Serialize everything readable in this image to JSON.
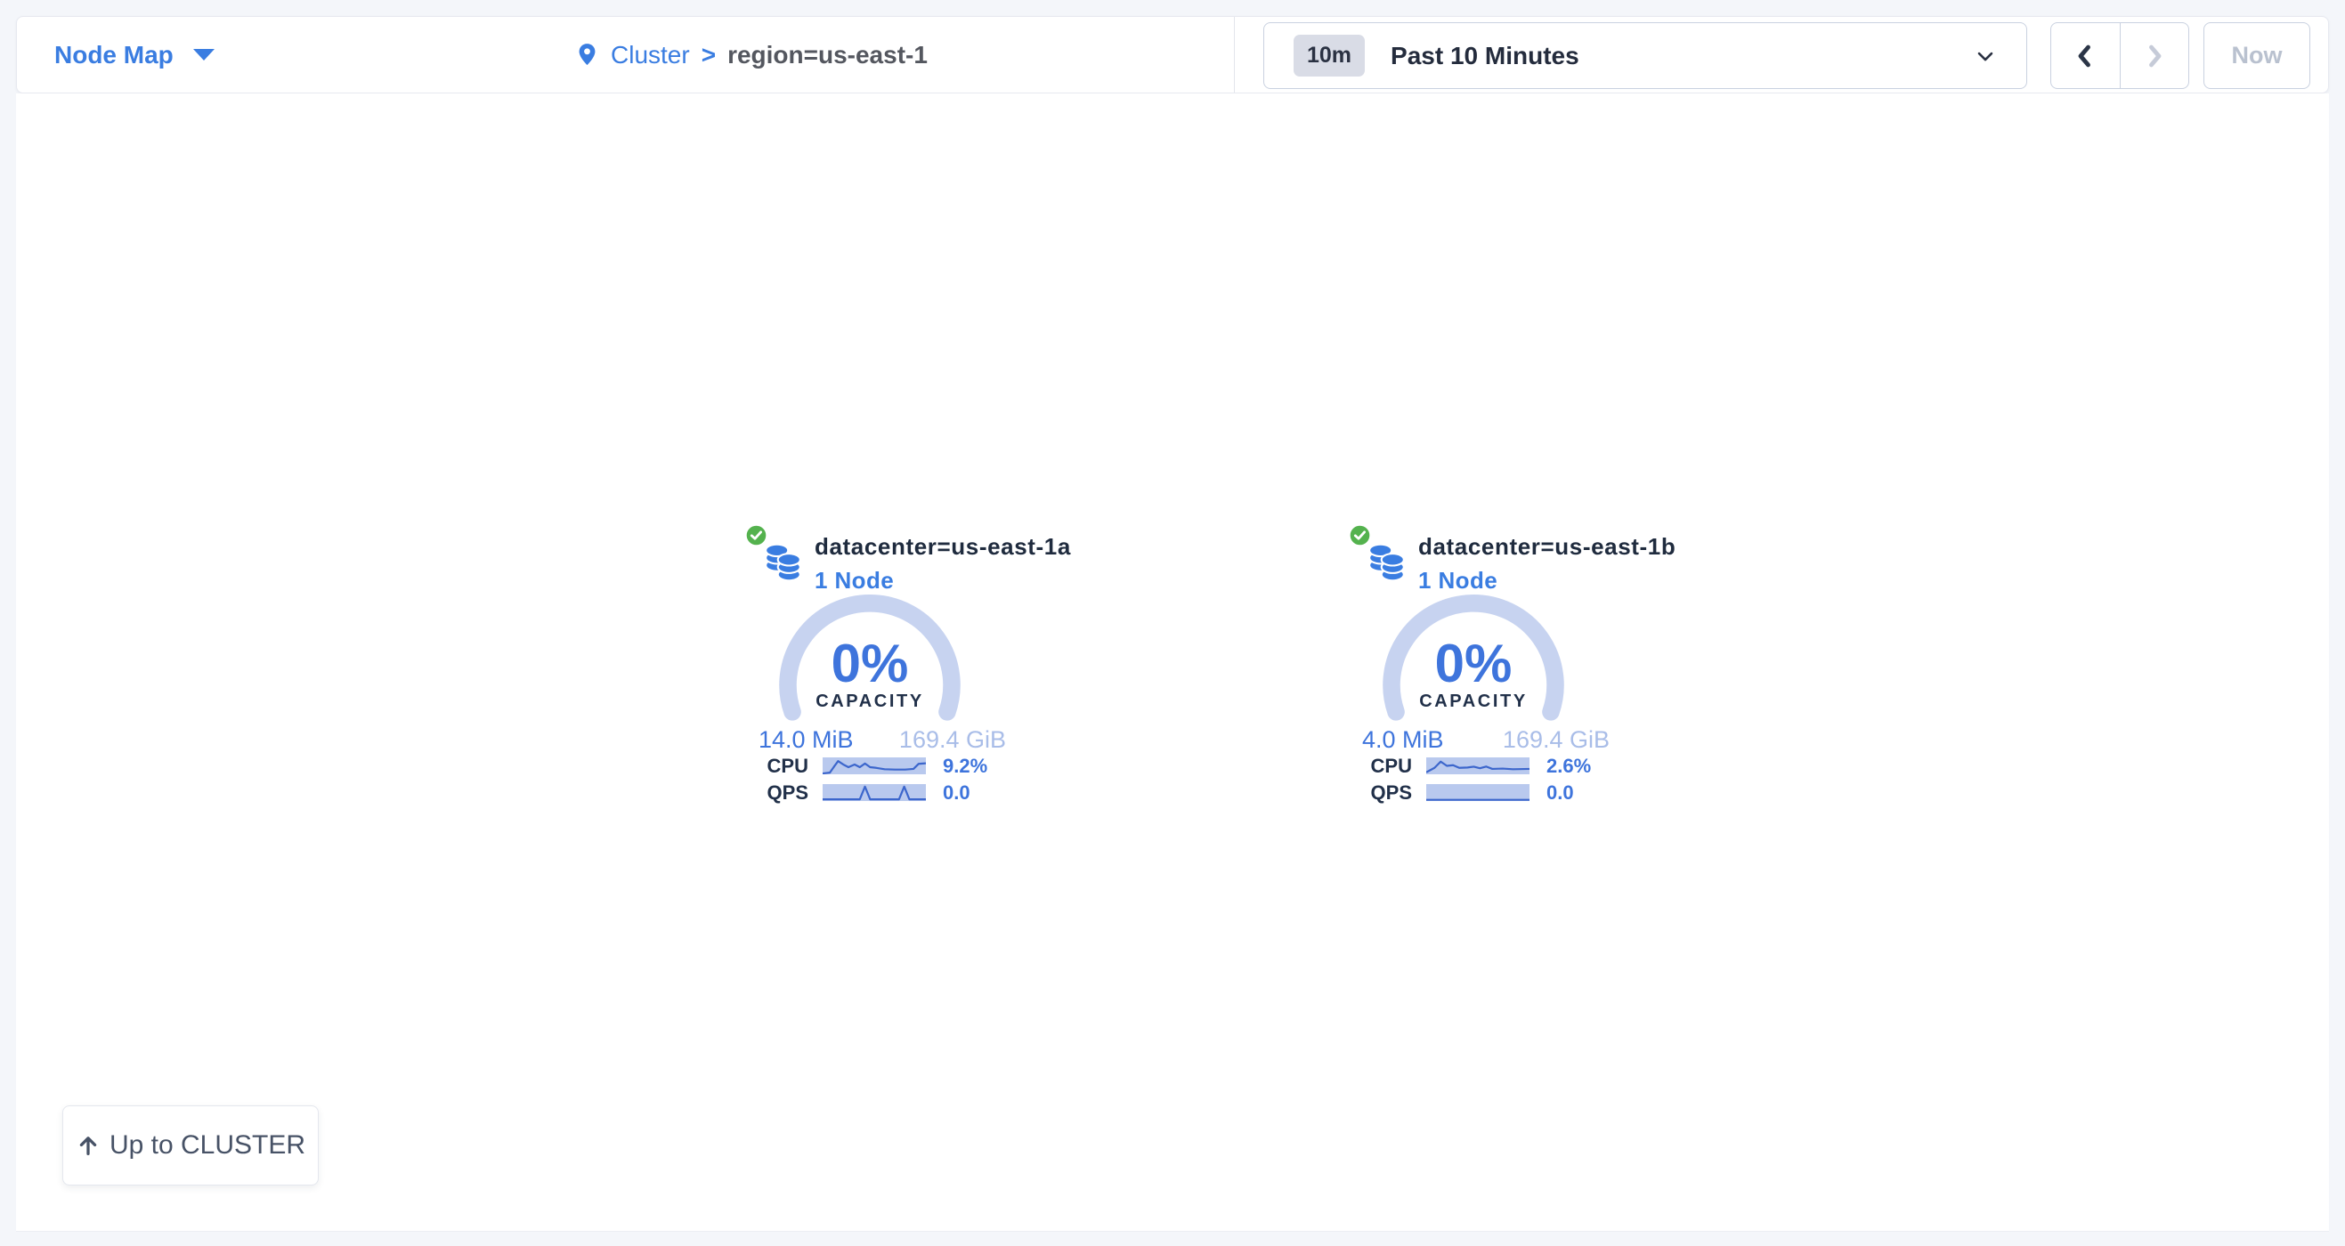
{
  "colors": {
    "accent_blue": "#3a7de1",
    "value_blue": "#3e74dc",
    "gauge_track": "#c7d3f0",
    "total_light_blue": "#a9bde8",
    "spark_band": "#b9c9ee",
    "spark_line": "#3c66cc",
    "status_green": "#54b24e",
    "navy_text": "#213049",
    "disabled_text": "#b9c1cf",
    "page_background": "#f4f6fa"
  },
  "header": {
    "view_selector": {
      "label": "Node Map"
    },
    "breadcrumb": {
      "cluster": "Cluster",
      "separator": ">",
      "current": "region=us-east-1"
    },
    "time_window": {
      "badge": "10m",
      "selected": "Past 10 Minutes"
    },
    "time_nav": {
      "now": "Now"
    }
  },
  "datacenters": [
    {
      "title": "datacenter=us-east-1a",
      "node_count": "1 Node",
      "capacity": {
        "percent": "0%",
        "label": "CAPACITY",
        "used": "14.0 MiB",
        "available": "169.4 GiB"
      },
      "metrics": [
        {
          "label": "CPU",
          "value": "9.2%",
          "spark": [
            [
              0,
              95
            ],
            [
              7,
              90
            ],
            [
              11,
              55
            ],
            [
              15,
              22
            ],
            [
              20,
              42
            ],
            [
              25,
              58
            ],
            [
              31,
              42
            ],
            [
              36,
              58
            ],
            [
              41,
              36
            ],
            [
              46,
              58
            ],
            [
              52,
              62
            ],
            [
              60,
              70
            ],
            [
              70,
              72
            ],
            [
              80,
              72
            ],
            [
              88,
              68
            ],
            [
              93,
              38
            ],
            [
              100,
              35
            ]
          ]
        },
        {
          "label": "QPS",
          "value": "0.0",
          "spark": [
            [
              0,
              90
            ],
            [
              36,
              90
            ],
            [
              41,
              15
            ],
            [
              46,
              90
            ],
            [
              74,
              90
            ],
            [
              79,
              15
            ],
            [
              84,
              90
            ],
            [
              100,
              90
            ]
          ]
        }
      ]
    },
    {
      "title": "datacenter=us-east-1b",
      "node_count": "1 Node",
      "capacity": {
        "percent": "0%",
        "label": "CAPACITY",
        "used": "4.0 MiB",
        "available": "169.4 GiB"
      },
      "metrics": [
        {
          "label": "CPU",
          "value": "2.6%",
          "spark": [
            [
              0,
              88
            ],
            [
              8,
              62
            ],
            [
              14,
              25
            ],
            [
              20,
              50
            ],
            [
              26,
              46
            ],
            [
              32,
              62
            ],
            [
              40,
              60
            ],
            [
              46,
              55
            ],
            [
              52,
              64
            ],
            [
              58,
              54
            ],
            [
              64,
              68
            ],
            [
              74,
              66
            ],
            [
              84,
              70
            ],
            [
              100,
              68
            ]
          ]
        },
        {
          "label": "QPS",
          "value": "0.0",
          "spark": [
            [
              0,
              93
            ],
            [
              100,
              93
            ]
          ]
        }
      ]
    }
  ],
  "footer": {
    "up_button": "Up to CLUSTER"
  }
}
